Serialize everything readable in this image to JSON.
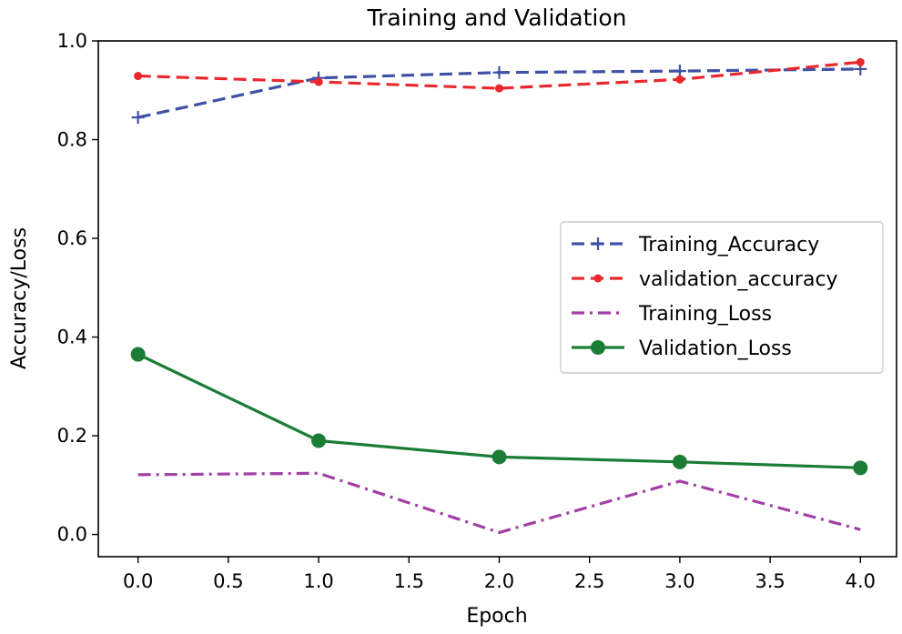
{
  "chart_data": {
    "type": "line",
    "title": "Training and Validation",
    "xlabel": "Epoch",
    "ylabel": "Accuracy/Loss",
    "xlim": [
      -0.22,
      4.2
    ],
    "ylim": [
      -0.045,
      1.0
    ],
    "x_ticks": [
      0.0,
      0.5,
      1.0,
      1.5,
      2.0,
      2.5,
      3.0,
      3.5,
      4.0
    ],
    "x_tick_labels": [
      "0.0",
      "0.5",
      "1.0",
      "1.5",
      "2.0",
      "2.5",
      "3.0",
      "3.5",
      "4.0"
    ],
    "y_ticks": [
      0.0,
      0.2,
      0.4,
      0.6,
      0.8,
      1.0
    ],
    "y_tick_labels": [
      "0.0",
      "0.2",
      "0.4",
      "0.6",
      "0.8",
      "1.0"
    ],
    "grid": false,
    "legend_position": "center-right",
    "x": [
      0,
      1,
      2,
      3,
      4
    ],
    "series": [
      {
        "name": "Training_Accuracy",
        "values": [
          0.845,
          0.925,
          0.936,
          0.939,
          0.943
        ],
        "color": "#3f51a5",
        "dash": "dashed",
        "marker": "plus"
      },
      {
        "name": "validation_accuracy",
        "values": [
          0.929,
          0.917,
          0.904,
          0.922,
          0.957
        ],
        "color": "#e8282d",
        "dash": "dashed",
        "marker": "dot"
      },
      {
        "name": "Training_Loss",
        "values": [
          0.121,
          0.124,
          0.004,
          0.108,
          0.01
        ],
        "color": "#a23fa6",
        "dash": "dashdot",
        "marker": "none"
      },
      {
        "name": "Validation_Loss",
        "values": [
          0.365,
          0.19,
          0.157,
          0.147,
          0.135
        ],
        "color": "#1b7d35",
        "dash": "solid",
        "marker": "circle"
      }
    ]
  }
}
